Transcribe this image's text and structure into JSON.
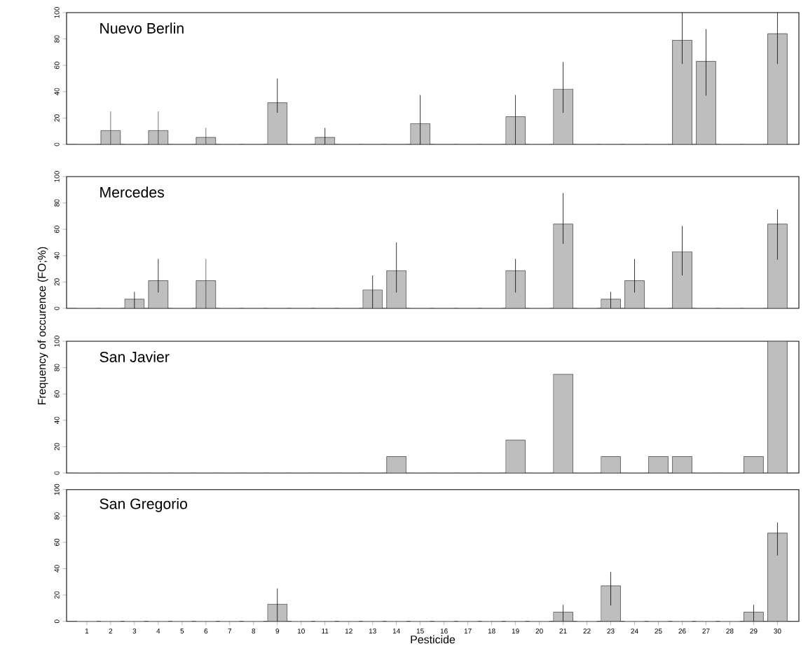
{
  "chart_data": [
    {
      "type": "bar",
      "title": "Nuevo Berlin",
      "categories": [
        "1",
        "2",
        "3",
        "4",
        "5",
        "6",
        "7",
        "8",
        "9",
        "10",
        "11",
        "12",
        "13",
        "14",
        "15",
        "16",
        "17",
        "18",
        "19",
        "20",
        "21",
        "22",
        "23",
        "24",
        "25",
        "26",
        "27",
        "28",
        "29",
        "30"
      ],
      "color": "#bebebe",
      "ylim": [
        0,
        100
      ],
      "yticks": [
        0,
        20,
        40,
        60,
        80,
        100
      ],
      "tick_labels": "y",
      "values": [
        0,
        10.5,
        0,
        10.5,
        0,
        5.3,
        0,
        0,
        31.6,
        0,
        5.3,
        0,
        0,
        0,
        15.8,
        0,
        0,
        0,
        21,
        0,
        42,
        0,
        0,
        0,
        0,
        79,
        63,
        0,
        0,
        84
      ],
      "errors": [
        null,
        [
          0,
          25
        ],
        null,
        [
          0,
          25
        ],
        null,
        [
          0,
          12.5
        ],
        null,
        null,
        [
          24,
          50
        ],
        null,
        [
          0,
          12.5
        ],
        null,
        null,
        null,
        [
          0,
          37.5
        ],
        null,
        null,
        null,
        [
          0,
          37.5
        ],
        null,
        [
          24,
          62.5
        ],
        null,
        null,
        null,
        null,
        [
          61,
          100
        ],
        [
          37,
          87.5
        ],
        null,
        null,
        [
          61,
          100
        ]
      ]
    },
    {
      "type": "bar",
      "title": "Mercedes",
      "ylabel": "Frequency of occurence (FO;%)",
      "categories": [
        "1",
        "2",
        "3",
        "4",
        "5",
        "6",
        "7",
        "8",
        "9",
        "10",
        "11",
        "12",
        "13",
        "14",
        "15",
        "16",
        "17",
        "18",
        "19",
        "20",
        "21",
        "22",
        "23",
        "24",
        "25",
        "26",
        "27",
        "28",
        "29",
        "30"
      ],
      "color": "#bebebe",
      "ylim": [
        0,
        100
      ],
      "yticks": [
        0,
        20,
        40,
        60,
        80,
        100
      ],
      "tick_labels": "y",
      "values": [
        0,
        0,
        7,
        21,
        0,
        21,
        0,
        0,
        0,
        0,
        0,
        0,
        14,
        28.6,
        0,
        0,
        0,
        0,
        28.6,
        0,
        64,
        0,
        7,
        21,
        0,
        43,
        0,
        0,
        0,
        64
      ],
      "errors": [
        null,
        null,
        [
          0,
          12.5
        ],
        [
          12,
          37.5
        ],
        null,
        [
          0,
          37.5
        ],
        null,
        null,
        null,
        null,
        null,
        null,
        [
          0,
          25
        ],
        [
          12,
          50
        ],
        null,
        null,
        null,
        null,
        [
          12,
          37.5
        ],
        null,
        [
          49,
          87.5
        ],
        null,
        [
          0,
          12.5
        ],
        [
          12,
          37.5
        ],
        null,
        [
          25,
          62.5
        ],
        null,
        null,
        null,
        [
          37,
          75
        ]
      ]
    },
    {
      "type": "bar",
      "title": "San Javier",
      "categories": [
        "1",
        "2",
        "3",
        "4",
        "5",
        "6",
        "7",
        "8",
        "9",
        "10",
        "11",
        "12",
        "13",
        "14",
        "15",
        "16",
        "17",
        "18",
        "19",
        "20",
        "21",
        "22",
        "23",
        "24",
        "25",
        "26",
        "27",
        "28",
        "29",
        "30"
      ],
      "color": "#bebebe",
      "ylim": [
        0,
        100
      ],
      "yticks": [
        0,
        20,
        40,
        60,
        80,
        100
      ],
      "tick_labels": "y",
      "values": [
        0,
        0,
        0,
        0,
        0,
        0,
        0,
        0,
        0,
        0,
        0,
        0,
        0,
        12.5,
        0,
        0,
        0,
        0,
        25,
        0,
        75,
        0,
        12.5,
        0,
        12.5,
        12.5,
        0,
        0,
        12.5,
        100
      ]
    },
    {
      "type": "bar",
      "title": "San Gregorio",
      "xlabel": "Pesticide",
      "categories": [
        "1",
        "2",
        "3",
        "4",
        "5",
        "6",
        "7",
        "8",
        "9",
        "10",
        "11",
        "12",
        "13",
        "14",
        "15",
        "16",
        "17",
        "18",
        "19",
        "20",
        "21",
        "22",
        "23",
        "24",
        "25",
        "26",
        "27",
        "28",
        "29",
        "30"
      ],
      "color": "#bebebe",
      "ylim": [
        0,
        100
      ],
      "yticks": [
        0,
        20,
        40,
        60,
        80,
        100
      ],
      "values": [
        0,
        0,
        0,
        0,
        0,
        0,
        0,
        0,
        13,
        0,
        0,
        0,
        0,
        0,
        0,
        0,
        0,
        0,
        0,
        0,
        7,
        0,
        27,
        0,
        0,
        0,
        0,
        0,
        7,
        67
      ],
      "errors": [
        null,
        null,
        null,
        null,
        null,
        null,
        null,
        null,
        [
          0,
          25
        ],
        null,
        null,
        null,
        null,
        null,
        null,
        null,
        null,
        null,
        null,
        null,
        [
          0,
          12.5
        ],
        null,
        [
          12,
          37.5
        ],
        null,
        null,
        null,
        null,
        null,
        [
          0,
          12.5
        ],
        [
          50,
          75
        ]
      ]
    }
  ]
}
